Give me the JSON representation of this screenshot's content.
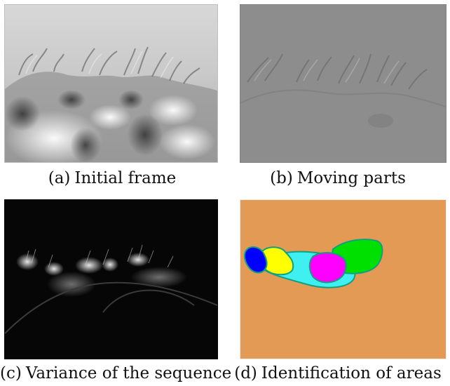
{
  "figure": {
    "panels": [
      {
        "label": "(a)",
        "caption": "Initial frame"
      },
      {
        "label": "(b)",
        "caption": "Moving parts"
      },
      {
        "label": "(c)",
        "caption": "Variance of the sequence"
      },
      {
        "label": "(d)",
        "caption": "Identification of areas"
      }
    ],
    "colors": {
      "background": "#ffffff",
      "segmentation_background": "#e39a54",
      "region_blue": "#0000ff",
      "region_yellow": "#ffff00",
      "region_cyan": "#40f0f0",
      "region_magenta": "#ff00ff",
      "region_green": "#00e000",
      "region_outline": "#10a080"
    }
  }
}
